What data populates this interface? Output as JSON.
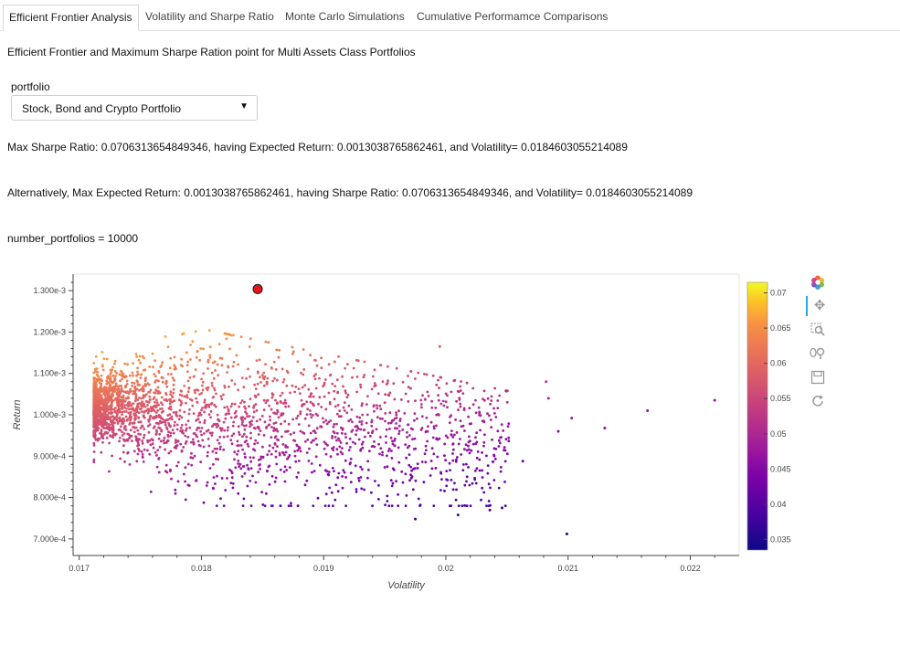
{
  "tabs": [
    {
      "label": "Efficient Frontier Analysis",
      "active": true
    },
    {
      "label": "Volatility and Sharpe Ratio",
      "active": false
    },
    {
      "label": "Monte Carlo Simulations",
      "active": false
    },
    {
      "label": "Cumulative Performamce Comparisons",
      "active": false
    }
  ],
  "heading": "Efficient Frontier and Maximum Sharpe Ration point for Multi Assets Class Portfolios",
  "portfolio_select": {
    "label": "portfolio",
    "value": "Stock, Bond and Crypto Portfolio"
  },
  "max_sharpe_text": "Max Sharpe Ratio: 0.0706313654849346, having Expected Return: 0.0013038765862461, and Volatility= 0.0184603055214089",
  "max_return_text": "Alternatively, Max Expected Return: 0.0013038765862461, having Sharpe Ratio: 0.0706313654849346, and Volatility= 0.0184603055214089",
  "number_portfolios_text": "number_portfolios = 10000",
  "toolbar": {
    "logo": "bokeh-logo-icon",
    "tools": [
      "pan-icon",
      "box-zoom-icon",
      "wheel-zoom-icon",
      "save-icon",
      "reset-icon"
    ]
  },
  "chart_data": {
    "type": "scatter",
    "xlabel": "Volatility",
    "ylabel": "Return",
    "xlim": [
      0.01695,
      0.0224
    ],
    "ylim": [
      0.00066,
      0.00134
    ],
    "x_ticks": [
      0.017,
      0.018,
      0.019,
      0.02,
      0.021,
      0.022
    ],
    "x_tick_labels": [
      "0.017",
      "0.018",
      "0.019",
      "0.02",
      "0.021",
      "0.022"
    ],
    "y_ticks": [
      0.0007,
      0.0008,
      0.0009,
      0.001,
      0.0011,
      0.0012,
      0.0013
    ],
    "y_tick_labels": [
      "7.000e-4",
      "8.000e-4",
      "9.000e-4",
      "1.000e-3",
      "1.100e-3",
      "1.200e-3",
      "1.300e-3"
    ],
    "color_metric": "sharpe_ratio",
    "colormap": "plasma",
    "colorbar_range": [
      0.0335,
      0.0715
    ],
    "colorbar_ticks": [
      0.035,
      0.04,
      0.045,
      0.05,
      0.055,
      0.06,
      0.065,
      0.07
    ],
    "colorbar_tick_labels": [
      "0.035",
      "0.04",
      "0.045",
      "0.05",
      "0.055",
      "0.06",
      "0.065",
      "0.07"
    ],
    "n_points": 10000,
    "max_sharpe_point": {
      "x": 0.0184603055214089,
      "y": 0.0013038765862461,
      "color": "#e8151b"
    },
    "outlier_points": [
      {
        "x": 0.0222,
        "y": 0.001035
      },
      {
        "x": 0.02165,
        "y": 0.00101
      },
      {
        "x": 0.0213,
        "y": 0.000968
      },
      {
        "x": 0.02103,
        "y": 0.000992
      },
      {
        "x": 0.02099,
        "y": 0.000712
      },
      {
        "x": 0.02092,
        "y": 0.00096
      },
      {
        "x": 0.02084,
        "y": 0.00104
      },
      {
        "x": 0.02082,
        "y": 0.00108
      },
      {
        "x": 0.02063,
        "y": 0.000888
      },
      {
        "x": 0.02046,
        "y": 0.000775
      },
      {
        "x": 0.02036,
        "y": 0.00077
      },
      {
        "x": 0.0201,
        "y": 0.000758
      },
      {
        "x": 0.01975,
        "y": 0.000748
      },
      {
        "x": 0.01995,
        "y": 0.001165
      }
    ]
  }
}
